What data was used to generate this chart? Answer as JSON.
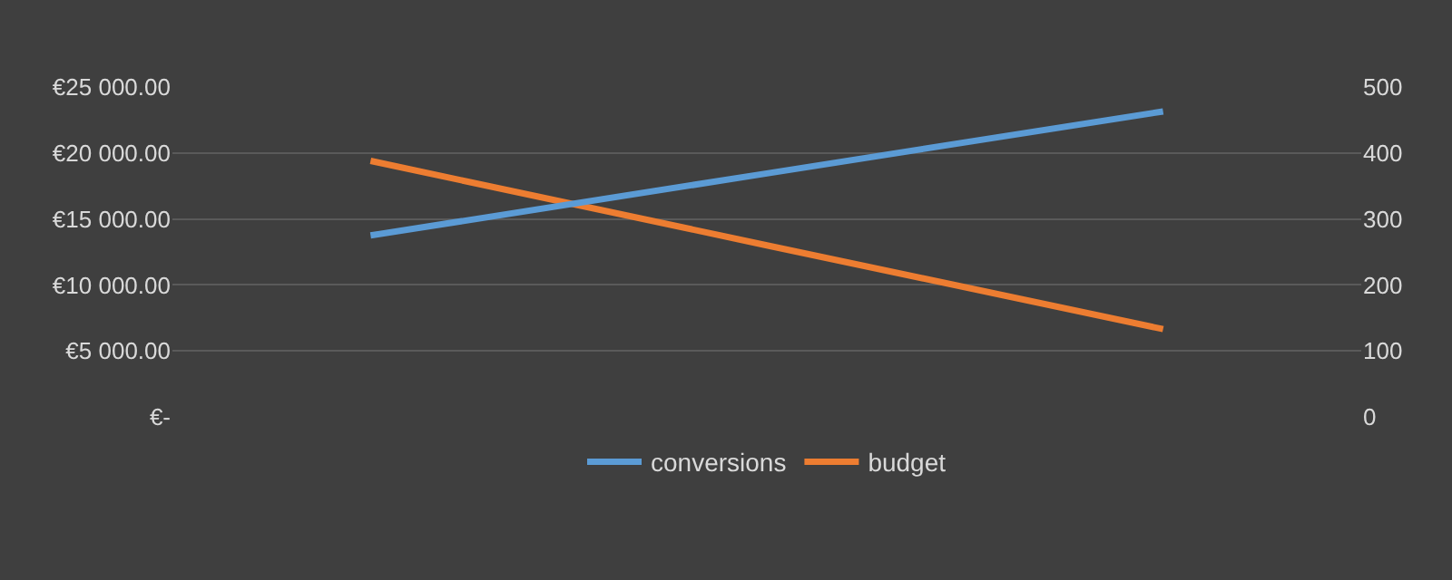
{
  "chart_data": {
    "type": "line",
    "categories": [
      null,
      null,
      null
    ],
    "series": [
      {
        "name": "conversions",
        "color": "#5b9bd5",
        "values": [
          275,
          369,
          463
        ],
        "axis": "y2"
      },
      {
        "name": "budget",
        "color": "#ed7d31",
        "values": [
          19400,
          13000,
          6650
        ]
      }
    ],
    "ylim": [
      0,
      25000
    ],
    "yticks": [
      {
        "value": 0,
        "label": "€-"
      },
      {
        "value": 5000,
        "label": "€5 000.00"
      },
      {
        "value": 10000,
        "label": "€10 000.00"
      },
      {
        "value": 15000,
        "label": "€15 000.00"
      },
      {
        "value": 20000,
        "label": "€20 000.00"
      },
      {
        "value": 25000,
        "label": "€25 000.00"
      }
    ],
    "y2lim": [
      0,
      500
    ],
    "y2ticks": [
      0,
      100,
      200,
      300,
      400,
      500
    ],
    "grid": "y",
    "legend": "bottom",
    "marker": "none",
    "line_style": "solid",
    "tick_labels": "y"
  }
}
